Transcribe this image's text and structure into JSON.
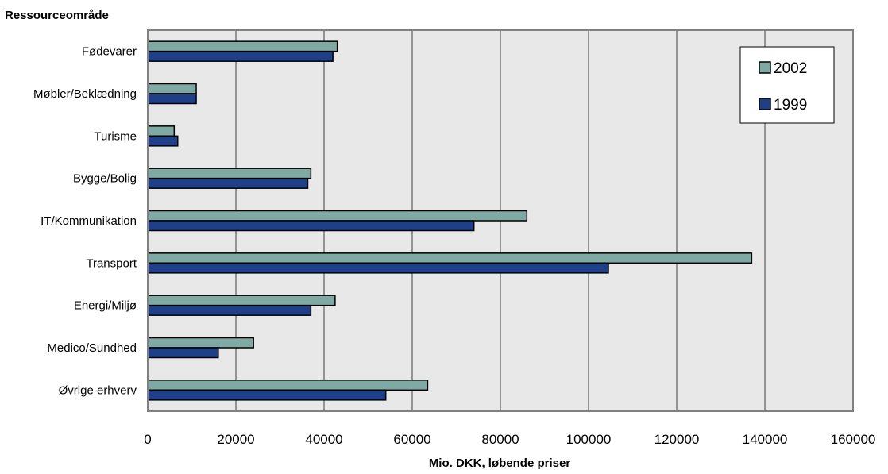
{
  "chart_data": {
    "type": "bar",
    "orientation": "horizontal",
    "title": "",
    "category_axis_title": "Ressourceområde",
    "xlabel": "Mio. DKK, løbende priser",
    "xlim": [
      0,
      160000
    ],
    "xticks": [
      0,
      20000,
      40000,
      60000,
      80000,
      100000,
      120000,
      140000,
      160000
    ],
    "grid": true,
    "legend_position": "top-right",
    "categories": [
      "Fødevarer",
      "Møbler/Beklædning",
      "Turisme",
      "Bygge/Bolig",
      "IT/Kommunikation",
      "Transport",
      "Energi/Miljø",
      "Medico/Sundhed",
      "Øvrige erhverv"
    ],
    "series": [
      {
        "name": "2002",
        "color": "#7fa9a3",
        "values": [
          43000,
          11000,
          6000,
          37000,
          86000,
          137000,
          42500,
          24000,
          63500
        ]
      },
      {
        "name": "1999",
        "color": "#1f3f86",
        "values": [
          42000,
          11000,
          6800,
          36300,
          74000,
          104500,
          37000,
          16000,
          54000
        ]
      }
    ],
    "colors": {
      "plot_background": "#e8e8e8",
      "plot_border": "#808080",
      "gridline": "#404040"
    }
  }
}
